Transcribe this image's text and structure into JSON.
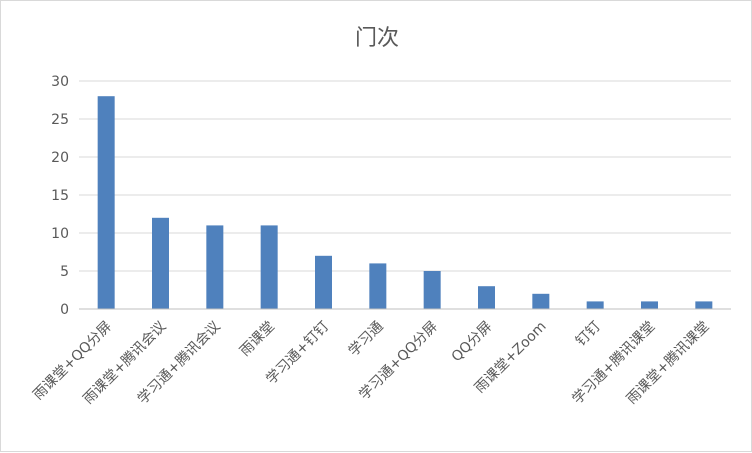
{
  "chart_data": {
    "type": "bar",
    "title": "门次",
    "categories": [
      "雨课堂+QQ分屏",
      "雨课堂+腾讯会议",
      "学习通+腾讯会议",
      "雨课堂",
      "学习通+钉钉",
      "学习通",
      "学习通+QQ分屏",
      "QQ分屏",
      "雨课堂+Zoom",
      "钉钉",
      "学习通+腾讯课堂",
      "雨课堂+腾讯课堂"
    ],
    "values": [
      28,
      12,
      11,
      11,
      7,
      6,
      5,
      3,
      2,
      1,
      1,
      1
    ],
    "ylim": [
      0,
      30
    ],
    "yticks": [
      "0",
      "5",
      "10",
      "15",
      "20",
      "25",
      "30"
    ],
    "grid": true,
    "bar_color": "#4f81bd"
  }
}
